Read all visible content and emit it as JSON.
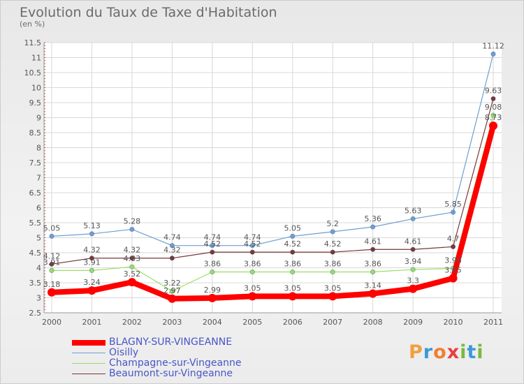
{
  "title": "Evolution du Taux de Taxe d'Habitation",
  "subtitle": "(en %)",
  "logo": {
    "letters": [
      {
        "ch": "P",
        "color": "#f0a040"
      },
      {
        "ch": "r",
        "color": "#3a9ad8"
      },
      {
        "ch": "o",
        "color": "#f08030"
      },
      {
        "ch": "x",
        "color": "#e84040"
      },
      {
        "ch": "i",
        "color": "#7ab840"
      },
      {
        "ch": "t",
        "color": "#3a9ad8"
      },
      {
        "ch": "i",
        "color": "#7ab840"
      }
    ]
  },
  "chart_data": {
    "type": "line",
    "x": [
      "2000",
      "2001",
      "2002",
      "2003",
      "2004",
      "2005",
      "2006",
      "2007",
      "2008",
      "2009",
      "2010",
      "2011"
    ],
    "ylim": [
      2.5,
      11.5
    ],
    "yticks": [
      "2.5",
      "3",
      "3.5",
      "4",
      "4.5",
      "5",
      "5.5",
      "6",
      "6.5",
      "7",
      "7.5",
      "8",
      "8.5",
      "9",
      "9.5",
      "10",
      "10.5",
      "11",
      "11.5"
    ],
    "grid": true,
    "series": [
      {
        "name": "BLAGNY-SUR-VINGEANNE",
        "color": "#ff0000",
        "values": [
          3.18,
          3.24,
          3.52,
          2.97,
          2.99,
          3.05,
          3.05,
          3.05,
          3.14,
          3.3,
          3.65,
          8.73
        ],
        "labels": [
          "3.18",
          "3.24",
          "3.52",
          "2.97",
          "2.99",
          "3.05",
          "3.05",
          "3.05",
          "3.14",
          "3.3",
          "3.65",
          "8.73"
        ]
      },
      {
        "name": "Oisilly",
        "color": "#6f9fd0",
        "values": [
          5.05,
          5.13,
          5.28,
          4.74,
          4.74,
          4.74,
          5.05,
          5.2,
          5.36,
          5.63,
          5.85,
          11.12
        ],
        "labels": [
          "5.05",
          "5.13",
          "5.28",
          "4.74",
          "4.74",
          "4.74",
          "5.05",
          "5.2",
          "5.36",
          "5.63",
          "5.85",
          "11.12"
        ]
      },
      {
        "name": "Champagne-sur-Vingeanne",
        "color": "#99dd66",
        "values": [
          3.91,
          3.91,
          4.03,
          3.22,
          3.86,
          3.86,
          3.86,
          3.86,
          3.86,
          3.94,
          3.98,
          9.08
        ],
        "labels": [
          "3.91",
          "3.91",
          "4.03",
          "3.22",
          "3.86",
          "3.86",
          "3.86",
          "3.86",
          "3.86",
          "3.94",
          "3.98",
          "9.08"
        ]
      },
      {
        "name": "Beaumont-sur-Vingeanne",
        "color": "#7a3838",
        "values": [
          4.12,
          4.32,
          4.32,
          4.32,
          4.52,
          4.52,
          4.52,
          4.52,
          4.61,
          4.61,
          4.7,
          9.63
        ],
        "labels": [
          "4.12",
          "4.32",
          "4.32",
          "4.32",
          "4.52",
          "4.52",
          "4.52",
          "4.52",
          "4.61",
          "4.61",
          "4.7",
          "9.63"
        ]
      }
    ]
  }
}
